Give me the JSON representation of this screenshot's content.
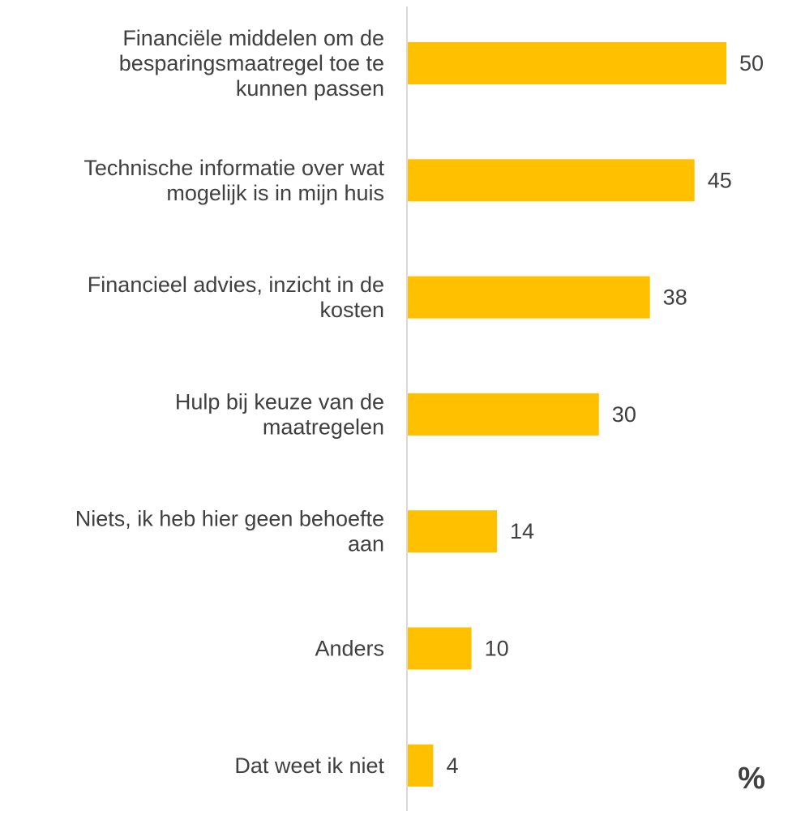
{
  "chart_data": {
    "type": "bar",
    "orientation": "horizontal",
    "categories": [
      "Financiële middelen om de besparingsmaatregel toe te kunnen passen",
      "Technische informatie over wat mogelijk is in mijn huis",
      "Financieel advies, inzicht in de kosten",
      "Hulp bij keuze van de maatregelen",
      "Niets, ik heb hier geen behoefte aan",
      "Anders",
      "Dat weet ik niet"
    ],
    "category_lines": [
      [
        "Financiële middelen om de",
        "besparingsmaatregel toe te",
        "kunnen passen"
      ],
      [
        "Technische informatie over wat",
        "mogelijk is in mijn huis"
      ],
      [
        "Financieel advies, inzicht in de",
        "kosten"
      ],
      [
        "Hulp bij keuze van de",
        "maatregelen"
      ],
      [
        "Niets, ik heb hier geen behoefte",
        "aan"
      ],
      [
        "Anders"
      ],
      [
        "Dat weet ik niet"
      ]
    ],
    "values": [
      50,
      45,
      38,
      30,
      14,
      10,
      4
    ],
    "data_labels": [
      "50",
      "45",
      "38",
      "30",
      "14",
      "10",
      "4"
    ],
    "unit_label": "%",
    "xlim": [
      0,
      50
    ],
    "grid": false,
    "legend": "none",
    "bar_color": "#FFC000",
    "axis_color": "#D9D9D9",
    "text_color": "#404040"
  }
}
